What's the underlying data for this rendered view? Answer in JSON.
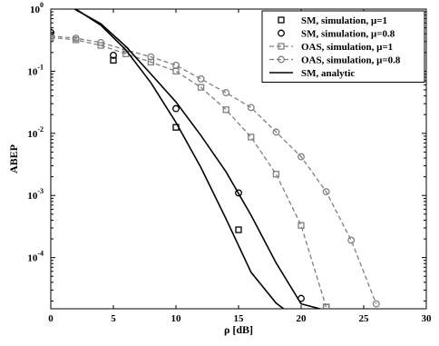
{
  "chart_data": {
    "type": "line",
    "xlabel": "ρ [dB]",
    "ylabel": "ABEP",
    "xlim": [
      0,
      30
    ],
    "ylim": [
      1.5e-05,
      1
    ],
    "yscale": "log",
    "grid": false,
    "legend_position": "top-right",
    "x_ticks": [
      "0",
      "5",
      "10",
      "15",
      "20",
      "25",
      "30"
    ],
    "x_tick_values": [
      0,
      5,
      10,
      15,
      20,
      25,
      30
    ],
    "y_ticks": [
      {
        "base": "10",
        "exp": "0",
        "value": 1
      },
      {
        "base": "10",
        "exp": "-1",
        "value": 0.1
      },
      {
        "base": "10",
        "exp": "-2",
        "value": 0.01
      },
      {
        "base": "10",
        "exp": "-3",
        "value": 0.001
      },
      {
        "base": "10",
        "exp": "-4",
        "value": 0.0001
      }
    ],
    "series": [
      {
        "name": "SM, simulation, μ=1",
        "marker": "square",
        "line": "none",
        "color": "#000000",
        "x": [
          0,
          5,
          10,
          15,
          22
        ],
        "y": [
          0.38,
          0.15,
          0.0125,
          0.00028,
          1.6e-05
        ]
      },
      {
        "name": "SM, simulation, μ=0.8",
        "marker": "circle",
        "line": "none",
        "color": "#000000",
        "x": [
          0,
          5,
          10,
          15,
          20
        ],
        "y": [
          0.42,
          0.18,
          0.025,
          0.0011,
          2.2e-05
        ]
      },
      {
        "name": "OAS, simulation, μ=1",
        "marker": "square",
        "line": "dashed",
        "color": "#7f7f7f",
        "x": [
          0,
          2,
          4,
          6,
          8,
          10,
          12,
          14,
          16,
          18,
          20,
          22
        ],
        "y": [
          0.35,
          0.32,
          0.26,
          0.19,
          0.14,
          0.1,
          0.055,
          0.024,
          0.0087,
          0.0022,
          0.00033,
          1.6e-05
        ]
      },
      {
        "name": "OAS, simulation, μ=0.8",
        "marker": "circle",
        "line": "dashed",
        "color": "#7f7f7f",
        "x": [
          0,
          2,
          4,
          6,
          8,
          10,
          12,
          14,
          16,
          18,
          20,
          22,
          24,
          26
        ],
        "y": [
          0.37,
          0.34,
          0.29,
          0.22,
          0.17,
          0.125,
          0.075,
          0.045,
          0.026,
          0.0105,
          0.0042,
          0.00115,
          0.00019,
          1.8e-05
        ]
      },
      {
        "name": "SM, analytic",
        "marker": "none",
        "line": "solid",
        "color": "#000000",
        "x": [
          2,
          4,
          6,
          8,
          10,
          12,
          14,
          16,
          18,
          18.6
        ],
        "y": [
          1.0,
          0.55,
          0.22,
          0.065,
          0.015,
          0.0028,
          0.00042,
          5.8e-05,
          1.85e-05,
          1.5e-05
        ]
      },
      {
        "name": "",
        "marker": "none",
        "line": "solid",
        "color": "#000000",
        "x": [
          1.9,
          4,
          6,
          8,
          10,
          12,
          14,
          16,
          18,
          20,
          21.5
        ],
        "y": [
          1.0,
          0.58,
          0.25,
          0.09,
          0.032,
          0.0092,
          0.0024,
          0.00048,
          8.2e-05,
          1.8e-05,
          1.5e-05
        ]
      }
    ]
  }
}
